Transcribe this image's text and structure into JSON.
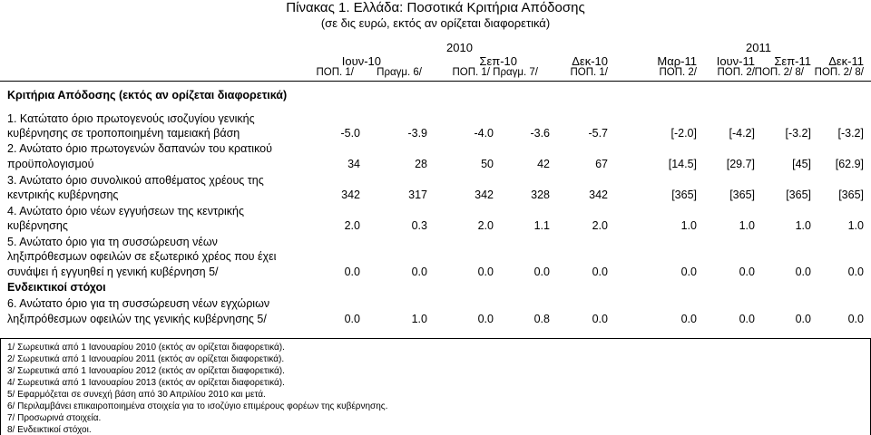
{
  "title": "Πίνακας 1. Ελλάδα: Ποσοτικά Κριτήρια Απόδοσης",
  "subtitle": "(σε δις ευρώ, εκτός αν ορίζεται διαφορετικά)",
  "years": {
    "y2010": "2010",
    "y2011": "2011"
  },
  "columns": [
    {
      "month": "Ιουν-10",
      "sub": "ΠΟΠ. 1/"
    },
    {
      "month": "",
      "sub": "Πραγμ. 6/"
    },
    {
      "month": "Σεπ-10",
      "sub": "ΠΟΠ. 1/"
    },
    {
      "month": "",
      "sub": "Πραγμ. 7/"
    },
    {
      "month": "Δεκ-10",
      "sub": "ΠΟΠ. 1/"
    },
    {
      "month": "Μαρ-11",
      "sub": "ΠΟΠ. 2/"
    },
    {
      "month": "Ιουν-11",
      "sub": "ΠΟΠ. 2/"
    },
    {
      "month": "Σεπ-11",
      "sub": "ΠΟΠ. 2/ 8/"
    },
    {
      "month": "Δεκ-11",
      "sub": "ΠΟΠ. 2/ 8/"
    }
  ],
  "section_heading": "Κριτήρια Απόδοσης (εκτός αν ορίζεται διαφορετικά)",
  "rows": [
    {
      "lines": [
        "1. Κατώτατο όριο πρωτογενούς ισοζυγίου γενικής",
        "κυβέρνησης σε τροποποιημένη ταμειακή βάση"
      ],
      "values": [
        "-5.0",
        "-3.9",
        "-4.0",
        "-3.6",
        "-5.7",
        "[-2.0]",
        "[-4.2]",
        "[-3.2]",
        "[-3.2]"
      ]
    },
    {
      "lines": [
        "2. Ανώτατο όριο πρωτογενών δαπανών του κρατικού",
        "προϋπολογισμού"
      ],
      "values": [
        "34",
        "28",
        "50",
        "42",
        "67",
        "[14.5]",
        "[29.7]",
        "[45]",
        "[62.9]"
      ]
    },
    {
      "lines": [
        "3. Ανώτατο όριο συνολικού αποθέματος χρέους της",
        "κεντρικής κυβέρνησης"
      ],
      "values": [
        "342",
        "317",
        "342",
        "328",
        "342",
        "[365]",
        "[365]",
        "[365]",
        "[365]"
      ]
    },
    {
      "lines": [
        "4. Ανώτατο όριο νέων εγγυήσεων της κεντρικής",
        "κυβέρνησης"
      ],
      "values": [
        "2.0",
        "0.3",
        "2.0",
        "1.1",
        "2.0",
        "1.0",
        "1.0",
        "1.0",
        "1.0"
      ]
    },
    {
      "lines": [
        "5. Ανώτατο όριο για τη συσσώρευση νέων",
        "ληξιπρόθεσμων οφειλών σε εξωτερικό χρέος που έχει",
        "συνάψει ή εγγυηθεί η γενική κυβέρνηση  5/"
      ],
      "values": [
        "0.0",
        "0.0",
        "0.0",
        "0.0",
        "0.0",
        "0.0",
        "0.0",
        "0.0",
        "0.0"
      ]
    }
  ],
  "indicative_heading": "Ενδεικτικοί στόχοι",
  "row6": {
    "lines": [
      "6. Ανώτατο όριο για τη συσσώρευση νέων εγχώριων",
      "ληξιπρόθεσμων οφειλών της γενικής κυβέρνησης 5/"
    ],
    "values": [
      "0.0",
      "1.0",
      "0.0",
      "0.8",
      "0.0",
      "0.0",
      "0.0",
      "0.0",
      "0.0"
    ]
  },
  "footnotes": [
    "1/ Σωρευτικά από 1 Ιανουαρίου 2010 (εκτός αν ορίζεται διαφορετικά).",
    "2/ Σωρευτικά από 1 Ιανουαρίου 2011 (εκτός αν ορίζεται διαφορετικά).",
    "3/ Σωρευτικά από 1 Ιανουαρίου 2012 (εκτός αν ορίζεται διαφορετικά).",
    "4/ Σωρευτικά από 1 Ιανουαρίου 2013 (εκτός αν ορίζεται διαφορετικά).",
    "5/ Εφαρμόζεται σε συνεχή βάση από 30 Απριλίου 2010 και μετά.",
    "6/ Περιλαμβάνει επικαιροποιημένα στοιχεία για το ισοζύγιο επιμέρους φορέων της κυβέρνησης.",
    "7/ Προσωρινά στοιχεία.",
    "8/ Ενδεικτικοί στόχοι."
  ]
}
